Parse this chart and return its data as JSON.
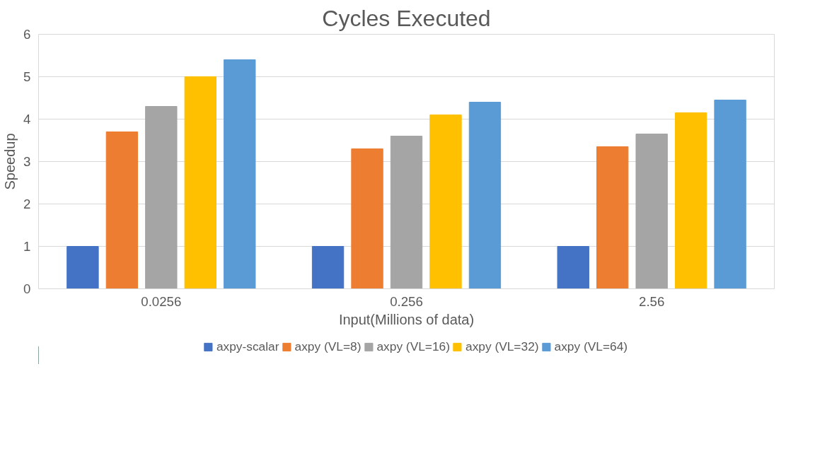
{
  "chart_data": {
    "type": "bar",
    "title": "Cycles Executed",
    "xlabel": "Input(Millions of data)",
    "ylabel": "Speedup",
    "categories": [
      "0.0256",
      "0.256",
      "2.56"
    ],
    "series": [
      {
        "name": "axpy-scalar",
        "color": "#4472c4",
        "values": [
          1.0,
          1.0,
          1.0
        ]
      },
      {
        "name": "axpy (VL=8)",
        "color": "#ed7d31",
        "values": [
          3.7,
          3.3,
          3.35
        ]
      },
      {
        "name": "axpy (VL=16)",
        "color": "#a5a5a5",
        "values": [
          4.3,
          3.6,
          3.65
        ]
      },
      {
        "name": "axpy (VL=32)",
        "color": "#ffc000",
        "values": [
          5.0,
          4.1,
          4.15
        ]
      },
      {
        "name": "axpy (VL=64)",
        "color": "#5b9bd5",
        "values": [
          5.4,
          4.4,
          4.45
        ]
      }
    ],
    "ylim": [
      0,
      6
    ],
    "yticks": [
      0,
      1,
      2,
      3,
      4,
      5,
      6
    ],
    "grid": "y",
    "legend": "bottom"
  }
}
